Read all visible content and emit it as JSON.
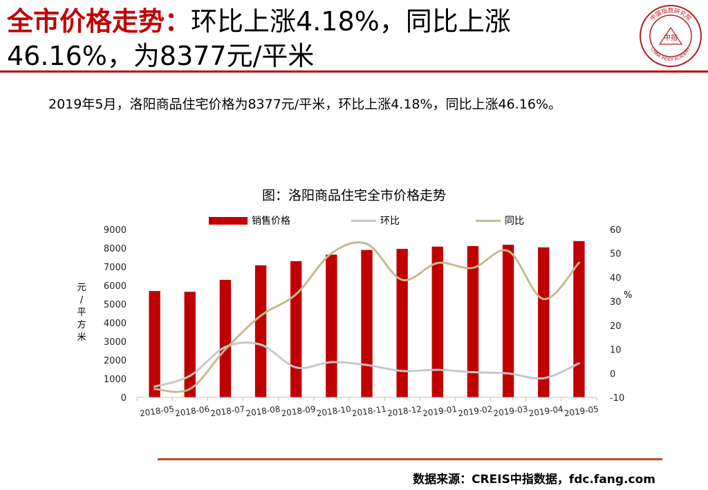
{
  "header": {
    "title_red": "全市价格走势：",
    "title_rest": "环比上涨4.18%，同比上涨46.16%，为8377元/平米"
  },
  "logo": {
    "icon": "china-index-academy-seal",
    "text": "CHINA INDEX ACADEMY",
    "chinese_top": "中国指数研究院",
    "center": "中指"
  },
  "summary": "2019年5月，洛阳商品住宅价格为8377元/平米，环比上涨4.18%，同比上涨46.16%。",
  "chart_title": "图：洛阳商品住宅全市价格走势",
  "ylabel_left": [
    "元",
    "/",
    "平",
    "方",
    "米"
  ],
  "ylabel_right": "%",
  "source": "数据来源：CREIS中指数据，fdc.fang.com",
  "colors": {
    "accent_red": "#c00000",
    "bar": "#c00000",
    "mom_line": "#c8c8c8",
    "yoy_line": "#c8b98c",
    "bottom_rule": "#b84a1e"
  },
  "chart_data": {
    "type": "bar",
    "title": "图：洛阳商品住宅全市价格走势",
    "categories": [
      "2018-05",
      "2018-06",
      "2018-07",
      "2018-08",
      "2018-09",
      "2018-10",
      "2018-11",
      "2018-12",
      "2019-01",
      "2019-02",
      "2019-03",
      "2019-04",
      "2019-05"
    ],
    "series": [
      {
        "name": "销售价格",
        "type": "bar",
        "axis": "left",
        "values": [
          5700,
          5660,
          6300,
          7080,
          7300,
          7650,
          7900,
          7960,
          8080,
          8110,
          8180,
          8040,
          8377
        ]
      },
      {
        "name": "环比",
        "type": "line",
        "axis": "right",
        "values": [
          -5.5,
          -1.0,
          11.0,
          12.0,
          2.5,
          4.7,
          3.5,
          1.0,
          1.5,
          0.5,
          0.0,
          -2.0,
          4.18
        ]
      },
      {
        "name": "同比",
        "type": "line",
        "axis": "right",
        "values": [
          -6.5,
          -6.5,
          10.0,
          24.0,
          33.0,
          50.0,
          54.0,
          39.0,
          46.0,
          44.0,
          51.0,
          31.0,
          46.16
        ]
      }
    ],
    "ylim_left": [
      0,
      9000
    ],
    "yticks_left": [
      0,
      1000,
      2000,
      3000,
      4000,
      5000,
      6000,
      7000,
      8000,
      9000
    ],
    "ylim_right": [
      -10,
      60
    ],
    "yticks_right": [
      -10,
      0,
      10,
      20,
      30,
      40,
      50,
      60
    ],
    "ylabel": "元/平方米",
    "ylabel_right": "%",
    "grid": false,
    "legend": "top"
  }
}
